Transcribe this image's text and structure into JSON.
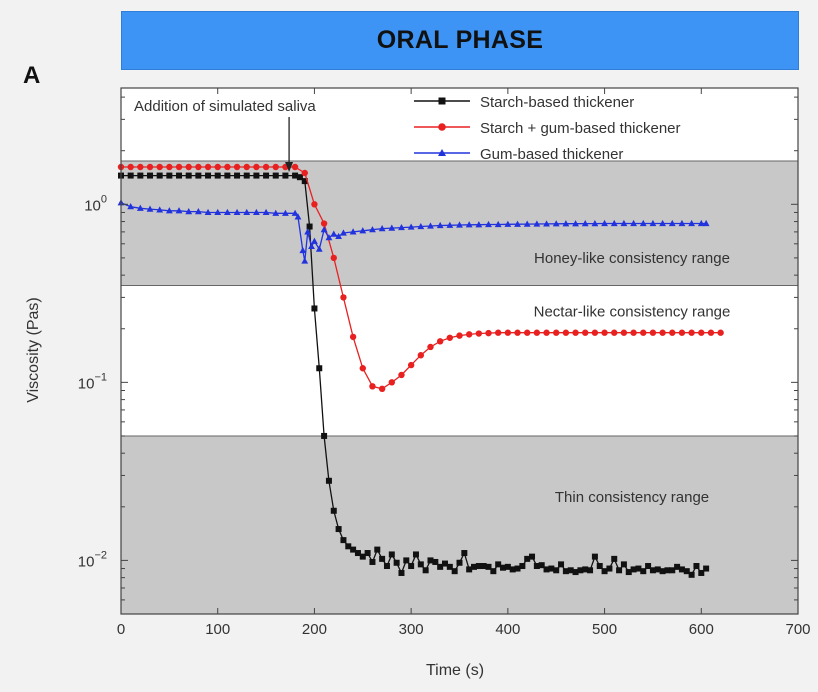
{
  "header": {
    "title": "ORAL PHASE",
    "panel_label": "A"
  },
  "chart_data": {
    "type": "line",
    "xlabel": "Time (s)",
    "ylabel": "Viscosity (Pas)",
    "xlim": [
      0,
      700
    ],
    "ylim": [
      0.005,
      4.5
    ],
    "y_scale": "log",
    "x_ticks": [
      0,
      100,
      200,
      300,
      400,
      500,
      600,
      700
    ],
    "y_ticks": [
      {
        "value": 1,
        "base": "10",
        "exp": "0"
      },
      {
        "value": 0.1,
        "base": "10",
        "exp": "−1"
      },
      {
        "value": 0.01,
        "base": "10",
        "exp": "−2"
      }
    ],
    "legend_position": "top-right",
    "bands": [
      {
        "label": "Honey-like consistency range",
        "ymin": 0.35,
        "ymax": 1.75,
        "color": "#c8c8c8"
      },
      {
        "label": "Nectar-like consistency range",
        "ymin": 0.05,
        "ymax": 0.35,
        "color": "#ffffff"
      },
      {
        "label": "Thin consistency range",
        "ymin": 0.005,
        "ymax": 0.05,
        "color": "#c8c8c8"
      }
    ],
    "annotation": {
      "text": "Addition of simulated saliva",
      "x": 180
    },
    "series": [
      {
        "name": "Starch-based thickener",
        "color": "#111111",
        "marker": "square",
        "points": [
          [
            0,
            1.45
          ],
          [
            10,
            1.45
          ],
          [
            20,
            1.45
          ],
          [
            30,
            1.45
          ],
          [
            40,
            1.45
          ],
          [
            50,
            1.45
          ],
          [
            60,
            1.45
          ],
          [
            70,
            1.45
          ],
          [
            80,
            1.45
          ],
          [
            90,
            1.45
          ],
          [
            100,
            1.45
          ],
          [
            110,
            1.45
          ],
          [
            120,
            1.45
          ],
          [
            130,
            1.45
          ],
          [
            140,
            1.45
          ],
          [
            150,
            1.45
          ],
          [
            160,
            1.45
          ],
          [
            170,
            1.45
          ],
          [
            180,
            1.45
          ],
          [
            185,
            1.42
          ],
          [
            190,
            1.35
          ],
          [
            195,
            0.75
          ],
          [
            200,
            0.26
          ],
          [
            205,
            0.12
          ],
          [
            210,
            0.05
          ],
          [
            215,
            0.028
          ],
          [
            220,
            0.019
          ],
          [
            225,
            0.015
          ],
          [
            230,
            0.013
          ],
          [
            235,
            0.012
          ],
          [
            240,
            0.0115
          ],
          [
            245,
            0.011
          ],
          [
            250,
            0.0105
          ],
          [
            255,
            0.011
          ],
          [
            260,
            0.0098
          ],
          [
            265,
            0.0115
          ],
          [
            270,
            0.0102
          ],
          [
            275,
            0.0093
          ],
          [
            280,
            0.0108
          ],
          [
            285,
            0.0097
          ],
          [
            290,
            0.0085
          ],
          [
            295,
            0.01
          ],
          [
            300,
            0.0093
          ],
          [
            305,
            0.0108
          ],
          [
            310,
            0.0095
          ],
          [
            315,
            0.0088
          ],
          [
            320,
            0.01
          ],
          [
            325,
            0.0098
          ],
          [
            330,
            0.0092
          ],
          [
            335,
            0.0096
          ],
          [
            340,
            0.0092
          ],
          [
            345,
            0.0087
          ],
          [
            350,
            0.0097
          ],
          [
            355,
            0.011
          ],
          [
            360,
            0.0089
          ],
          [
            365,
            0.0092
          ],
          [
            370,
            0.0093
          ],
          [
            375,
            0.0093
          ],
          [
            380,
            0.0092
          ],
          [
            385,
            0.0087
          ],
          [
            390,
            0.0095
          ],
          [
            395,
            0.0091
          ],
          [
            400,
            0.0092
          ],
          [
            405,
            0.0089
          ],
          [
            410,
            0.009
          ],
          [
            415,
            0.0093
          ],
          [
            420,
            0.0102
          ],
          [
            425,
            0.0105
          ],
          [
            430,
            0.0093
          ],
          [
            435,
            0.0094
          ],
          [
            440,
            0.0089
          ],
          [
            445,
            0.009
          ],
          [
            450,
            0.0088
          ],
          [
            455,
            0.0095
          ],
          [
            460,
            0.0087
          ],
          [
            465,
            0.0088
          ],
          [
            470,
            0.0086
          ],
          [
            475,
            0.0088
          ],
          [
            480,
            0.0089
          ],
          [
            485,
            0.0088
          ],
          [
            490,
            0.0105
          ],
          [
            495,
            0.0093
          ],
          [
            500,
            0.0087
          ],
          [
            505,
            0.009
          ],
          [
            510,
            0.0102
          ],
          [
            515,
            0.0088
          ],
          [
            520,
            0.0095
          ],
          [
            525,
            0.0086
          ],
          [
            530,
            0.0089
          ],
          [
            535,
            0.009
          ],
          [
            540,
            0.0087
          ],
          [
            545,
            0.0093
          ],
          [
            550,
            0.0088
          ],
          [
            555,
            0.0089
          ],
          [
            560,
            0.0087
          ],
          [
            565,
            0.0088
          ],
          [
            570,
            0.0088
          ],
          [
            575,
            0.0092
          ],
          [
            580,
            0.0089
          ],
          [
            585,
            0.0087
          ],
          [
            590,
            0.0083
          ],
          [
            595,
            0.0093
          ],
          [
            600,
            0.0085
          ],
          [
            605,
            0.009
          ]
        ]
      },
      {
        "name": "Starch + gum-based thickener",
        "color": "#e82020",
        "marker": "circle",
        "points": [
          [
            0,
            1.62
          ],
          [
            10,
            1.62
          ],
          [
            20,
            1.62
          ],
          [
            30,
            1.62
          ],
          [
            40,
            1.62
          ],
          [
            50,
            1.62
          ],
          [
            60,
            1.62
          ],
          [
            70,
            1.62
          ],
          [
            80,
            1.62
          ],
          [
            90,
            1.62
          ],
          [
            100,
            1.62
          ],
          [
            110,
            1.62
          ],
          [
            120,
            1.62
          ],
          [
            130,
            1.62
          ],
          [
            140,
            1.62
          ],
          [
            150,
            1.62
          ],
          [
            160,
            1.62
          ],
          [
            170,
            1.62
          ],
          [
            180,
            1.62
          ],
          [
            190,
            1.5
          ],
          [
            200,
            1.0
          ],
          [
            210,
            0.78
          ],
          [
            220,
            0.5
          ],
          [
            230,
            0.3
          ],
          [
            240,
            0.18
          ],
          [
            250,
            0.12
          ],
          [
            260,
            0.095
          ],
          [
            270,
            0.092
          ],
          [
            280,
            0.1
          ],
          [
            290,
            0.11
          ],
          [
            300,
            0.125
          ],
          [
            310,
            0.142
          ],
          [
            320,
            0.158
          ],
          [
            330,
            0.17
          ],
          [
            340,
            0.178
          ],
          [
            350,
            0.183
          ],
          [
            360,
            0.186
          ],
          [
            370,
            0.188
          ],
          [
            380,
            0.189
          ],
          [
            390,
            0.19
          ],
          [
            400,
            0.19
          ],
          [
            410,
            0.19
          ],
          [
            420,
            0.19
          ],
          [
            430,
            0.19
          ],
          [
            440,
            0.19
          ],
          [
            450,
            0.19
          ],
          [
            460,
            0.19
          ],
          [
            470,
            0.19
          ],
          [
            480,
            0.19
          ],
          [
            490,
            0.19
          ],
          [
            500,
            0.19
          ],
          [
            510,
            0.19
          ],
          [
            520,
            0.19
          ],
          [
            530,
            0.19
          ],
          [
            540,
            0.19
          ],
          [
            550,
            0.19
          ],
          [
            560,
            0.19
          ],
          [
            570,
            0.19
          ],
          [
            580,
            0.19
          ],
          [
            590,
            0.19
          ],
          [
            600,
            0.19
          ],
          [
            610,
            0.19
          ],
          [
            620,
            0.19
          ]
        ]
      },
      {
        "name": "Gum-based thickener",
        "color": "#2233dd",
        "marker": "triangle",
        "points": [
          [
            0,
            1.02
          ],
          [
            10,
            0.97
          ],
          [
            20,
            0.95
          ],
          [
            30,
            0.94
          ],
          [
            40,
            0.93
          ],
          [
            50,
            0.92
          ],
          [
            60,
            0.92
          ],
          [
            70,
            0.91
          ],
          [
            80,
            0.91
          ],
          [
            90,
            0.9
          ],
          [
            100,
            0.9
          ],
          [
            110,
            0.9
          ],
          [
            120,
            0.9
          ],
          [
            130,
            0.9
          ],
          [
            140,
            0.9
          ],
          [
            150,
            0.9
          ],
          [
            160,
            0.89
          ],
          [
            170,
            0.89
          ],
          [
            180,
            0.89
          ],
          [
            183,
            0.85
          ],
          [
            188,
            0.55
          ],
          [
            190,
            0.48
          ],
          [
            193,
            0.7
          ],
          [
            197,
            0.58
          ],
          [
            200,
            0.62
          ],
          [
            205,
            0.56
          ],
          [
            210,
            0.72
          ],
          [
            215,
            0.65
          ],
          [
            220,
            0.68
          ],
          [
            225,
            0.66
          ],
          [
            230,
            0.69
          ],
          [
            240,
            0.7
          ],
          [
            250,
            0.71
          ],
          [
            260,
            0.72
          ],
          [
            270,
            0.73
          ],
          [
            280,
            0.735
          ],
          [
            290,
            0.74
          ],
          [
            300,
            0.745
          ],
          [
            310,
            0.75
          ],
          [
            320,
            0.755
          ],
          [
            330,
            0.76
          ],
          [
            340,
            0.762
          ],
          [
            350,
            0.765
          ],
          [
            360,
            0.767
          ],
          [
            370,
            0.768
          ],
          [
            380,
            0.77
          ],
          [
            390,
            0.77
          ],
          [
            400,
            0.772
          ],
          [
            410,
            0.773
          ],
          [
            420,
            0.774
          ],
          [
            430,
            0.775
          ],
          [
            440,
            0.776
          ],
          [
            450,
            0.777
          ],
          [
            460,
            0.778
          ],
          [
            470,
            0.778
          ],
          [
            480,
            0.779
          ],
          [
            490,
            0.779
          ],
          [
            500,
            0.78
          ],
          [
            510,
            0.78
          ],
          [
            520,
            0.78
          ],
          [
            530,
            0.78
          ],
          [
            540,
            0.78
          ],
          [
            550,
            0.78
          ],
          [
            560,
            0.78
          ],
          [
            570,
            0.78
          ],
          [
            580,
            0.78
          ],
          [
            590,
            0.78
          ],
          [
            600,
            0.78
          ],
          [
            605,
            0.78
          ]
        ]
      }
    ]
  }
}
